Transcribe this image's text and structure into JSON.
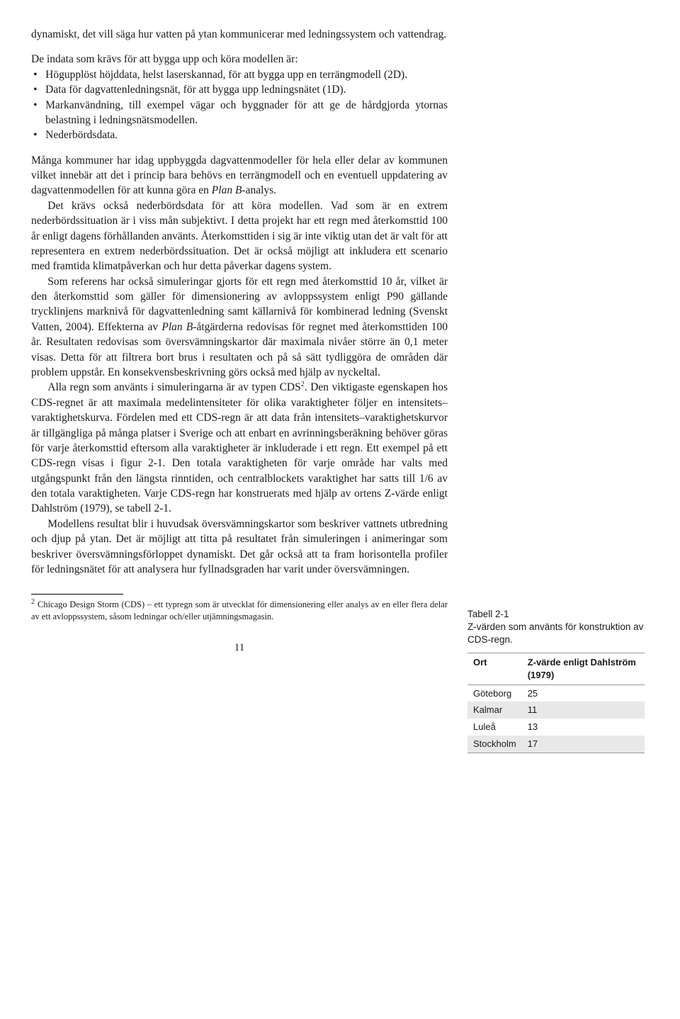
{
  "para_intro": "dynamiskt, det vill säga hur vatten på ytan kommunicerar med lednings­system och vattendrag.",
  "para_indata_lead": "De indata som krävs för att bygga upp och köra modellen är:",
  "bullets": [
    "Högupplöst höjddata, helst laserskannad, för att bygga upp en terräng­modell (2D).",
    "Data för dagvattenledningsnät, för att bygga upp ledningsnätet (1D).",
    "Markanvändning, till exempel vägar och byggnader för att ge de hård­gjorda ytornas belastning i ledningsnätsmodellen.",
    "Nederbördsdata."
  ],
  "para3a": "Många kommuner har idag uppbyggda dagvattenmodeller för hela eller delar av kommunen vilket innebär att det i princip bara behövs en terräng­modell och en eventuell uppdatering av dagvattenmodellen för att kunna göra en ",
  "para3b": "Plan B",
  "para3c": "-analys.",
  "para4": "Det krävs också nederbördsdata för att köra modellen. Vad som är en extrem nederbördssituation är i viss mån subjektivt. I detta projekt har ett regn med återkomsttid 100 år enligt dagens förhållanden använts. Åter­komsttiden i sig är inte viktig utan det är valt för att representera en extrem nederbördssituation. Det är också möjligt att inkludera ett scenario med framtida klimatpåverkan och hur detta påverkar dagens system.",
  "para5a": "Som referens har också simuleringar gjorts för ett regn med återkomsttid 10 år, vilket är den återkomsttid som gäller för dimensionering av avlopps­system enligt P90 gällande trycklinjens marknivå för dagvattenledning samt källarnivå för kombinerad ledning (Svenskt Vatten, 2004). Effekterna av ",
  "para5b": "Plan B",
  "para5c": "-åtgärderna redovisas för regnet med återkomsttiden 100 år. Resul­taten redovisas som översvämningskartor där maximala nivåer större än 0,1 meter visas. Detta för att filtrera bort brus i resultaten och på så sätt tyd­liggöra de områden där problem uppstår. En konsekvensbeskrivning görs också med hjälp av nyckeltal.",
  "para6a": "Alla regn som använts i simuleringarna är av typen CDS",
  "para6sup": "2",
  "para6b": ". Den viktigaste egenskapen hos CDS-regnet är att maximala medelintensiteter för olika var­aktigheter följer en intensitets–varaktighetskurva. Fördelen med ett CDS-regn är att data från intensitets–varaktighetskurvor är tillgängliga på många platser i Sverige och att enbart en avrinningsberäkning behöver göras för varje återkomsttid eftersom alla varaktigheter är inkluderade i ett regn. Ett exempel på ett CDS-regn visas i figur 2-1. Den totala varaktigheten för varje område har valts med utgångspunkt från den längsta rinntiden, och cen­tralblockets varaktighet har satts till 1/6 av den totala varaktigheten. Varje CDS-regn har konstruerats med hjälp av ortens Z-värde enligt Dahlström (1979), se tabell 2-1.",
  "para7": "Modellens resultat blir i huvudsak översvämningskartor som beskriver vattnets utbredning och djup på ytan. Det är möjligt att titta på resulta­tet från simuleringen i animeringar som beskriver översvämningsförloppet dynamiskt. Det går också att ta fram horisontella profiler för ledningsnätet för att analysera hur fyllnadsgraden har varit under översvämningen.",
  "footnote_num": "2",
  "footnote": "Chicago Design Storm (CDS) – ett typregn som är utvecklat för dimensionering eller analys av en eller flera delar av ett avloppssystem, såsom ledningar och/eller utjämningsmagasin.",
  "page_number": "11",
  "table": {
    "caption_title": "Tabell 2-1",
    "caption_text": "Z-värden som använts för konstruktion av CDS-regn.",
    "columns": [
      "Ort",
      "Z-värde enligt Dahlström (1979)"
    ],
    "rows": [
      [
        "Göteborg",
        "25"
      ],
      [
        "Kalmar",
        "11"
      ],
      [
        "Luleå",
        "13"
      ],
      [
        "Stockholm",
        "17"
      ]
    ],
    "alt_row_bg": "#e8e8e8",
    "border_color": "#999999",
    "header_font_weight": "600"
  }
}
